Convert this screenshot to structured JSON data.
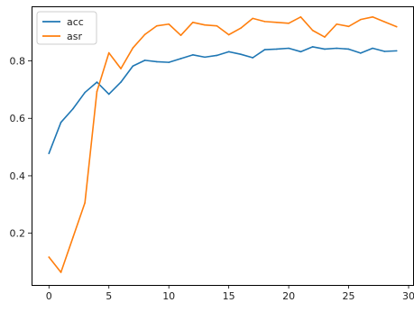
{
  "chart_data": {
    "type": "line",
    "title": "",
    "xlabel": "",
    "ylabel": "",
    "x": [
      0,
      1,
      2,
      3,
      4,
      5,
      6,
      7,
      8,
      9,
      10,
      11,
      12,
      13,
      14,
      15,
      16,
      17,
      18,
      19,
      20,
      21,
      22,
      23,
      24,
      25,
      26,
      27,
      28,
      29
    ],
    "xlim": [
      -1.45,
      30.45
    ],
    "ylim": [
      0.02,
      0.99
    ],
    "xticks": [
      0,
      5,
      10,
      15,
      20,
      25,
      30
    ],
    "yticks": [
      0.2,
      0.4,
      0.6,
      0.8
    ],
    "grid": false,
    "legend_position": "top-left",
    "series": [
      {
        "name": "acc",
        "color": "#1f77b4",
        "values": [
          0.478,
          0.586,
          0.633,
          0.69,
          0.726,
          0.684,
          0.726,
          0.782,
          0.802,
          0.797,
          0.795,
          0.808,
          0.821,
          0.813,
          0.819,
          0.832,
          0.823,
          0.811,
          0.839,
          0.841,
          0.844,
          0.832,
          0.849,
          0.841,
          0.844,
          0.841,
          0.827,
          0.844,
          0.833,
          0.835
        ]
      },
      {
        "name": "asr",
        "color": "#ff7f0e",
        "values": [
          0.117,
          0.064,
          0.185,
          0.306,
          0.693,
          0.828,
          0.773,
          0.845,
          0.892,
          0.922,
          0.928,
          0.889,
          0.934,
          0.925,
          0.922,
          0.891,
          0.914,
          0.948,
          0.937,
          0.934,
          0.931,
          0.953,
          0.906,
          0.883,
          0.928,
          0.92,
          0.944,
          0.953,
          0.936,
          0.919
        ]
      }
    ]
  }
}
